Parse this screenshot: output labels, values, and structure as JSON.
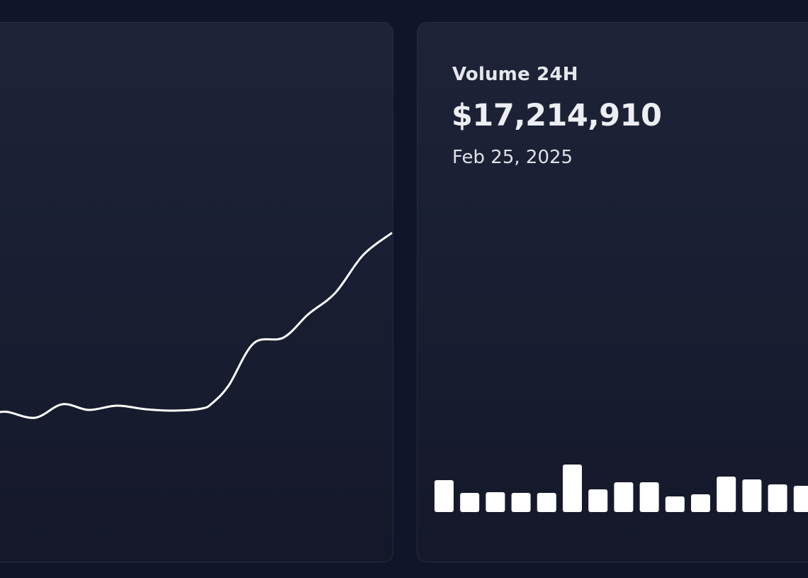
{
  "colors": {
    "page_bg": "#10152a",
    "card_bg_top": "#1e2337",
    "card_bg_bottom": "#141829",
    "line": "#ffffff",
    "bar": "#ffffff",
    "text": "#e6e7ec"
  },
  "volume_card": {
    "title": "Volume 24H",
    "value": "$17,214,910",
    "date": "Feb 25, 2025"
  },
  "chart_data": [
    {
      "type": "line",
      "title": "",
      "xlabel": "",
      "ylabel": "",
      "grid": false,
      "note": "relative price line, no axes shown; y values are pixel positions (lower = higher value)",
      "x": [
        0,
        12,
        50,
        88,
        125,
        165,
        205,
        245,
        285,
        300,
        323,
        358,
        400,
        435,
        473,
        512,
        552
      ],
      "y": [
        581,
        581,
        589,
        570,
        578,
        572,
        577,
        579,
        576,
        568,
        543,
        484,
        476,
        443,
        413,
        360,
        329
      ]
    },
    {
      "type": "bar",
      "title": "Volume 24H",
      "xlabel": "",
      "ylabel": "",
      "grid": false,
      "note": "relative volume bars, no axes shown; values are bar heights in px",
      "categories": [
        "1",
        "2",
        "3",
        "4",
        "5",
        "6",
        "7",
        "8",
        "9",
        "10",
        "11",
        "12",
        "13",
        "14",
        "15"
      ],
      "values": [
        45,
        27,
        28,
        27,
        27,
        67,
        32,
        42,
        42,
        22,
        25,
        50,
        46,
        39,
        37
      ]
    }
  ]
}
